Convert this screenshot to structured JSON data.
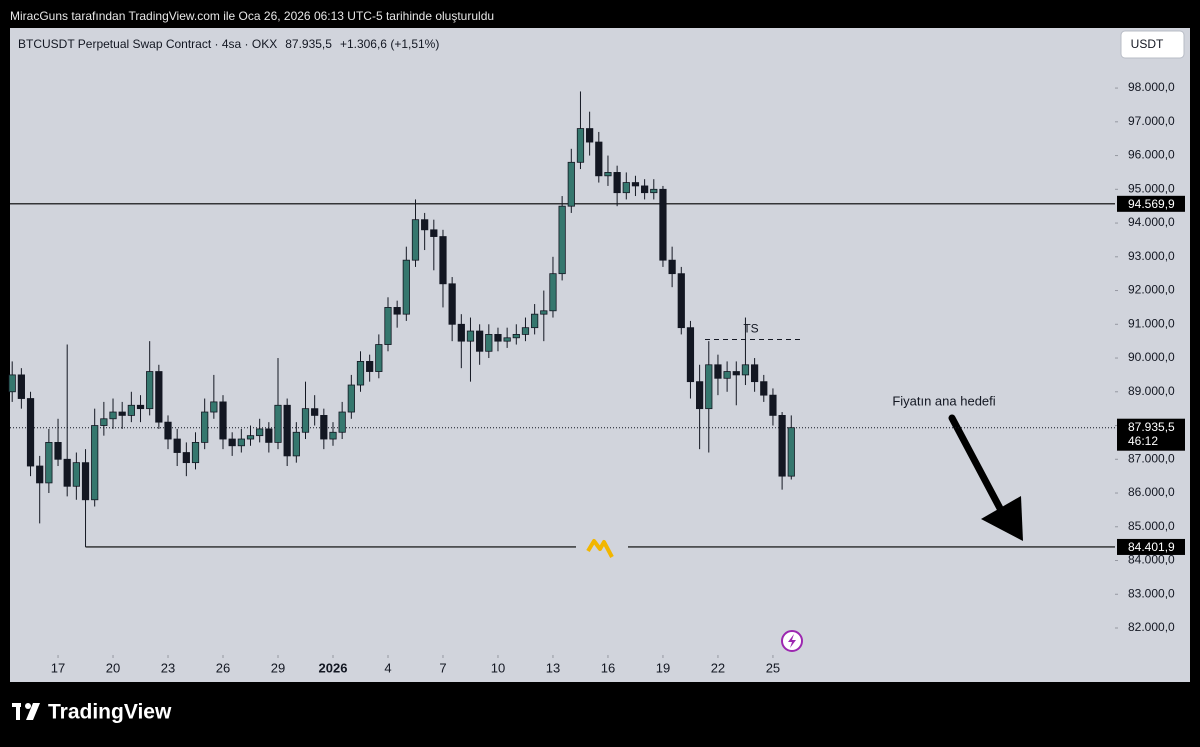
{
  "chart_data": {
    "type": "candlestick",
    "caption": "MiracGuns tarafından TradingView.com ile Oca 26, 2026 06:13 UTC-5 tarihinde oluşturuldu",
    "title": "BTCUSDT Perpetual Swap Contract · 4sa · OKX",
    "last_price": "87.935,5",
    "change": "+1.306,6 (+1,51%)",
    "currency": "USDT",
    "brand": "TradingView",
    "up_color": "#35776e",
    "down_color": "#131722",
    "ylim": [
      81200,
      99780
    ],
    "yticks": [
      {
        "value": 82000,
        "label": "82.000,0"
      },
      {
        "value": 83000,
        "label": "83.000,0"
      },
      {
        "value": 84000,
        "label": "84.000,0"
      },
      {
        "value": 85000,
        "label": "85.000,0"
      },
      {
        "value": 86000,
        "label": "86.000,0"
      },
      {
        "value": 87000,
        "label": "87.000,0"
      },
      {
        "value": 88000,
        "label": "88.000,0"
      },
      {
        "value": 89000,
        "label": "89.000,0"
      },
      {
        "value": 90000,
        "label": "90.000,0"
      },
      {
        "value": 91000,
        "label": "91.000,0"
      },
      {
        "value": 92000,
        "label": "92.000,0"
      },
      {
        "value": 93000,
        "label": "93.000,0"
      },
      {
        "value": 94000,
        "label": "94.000,0"
      },
      {
        "value": 95000,
        "label": "95.000,0"
      },
      {
        "value": 96000,
        "label": "96.000,0"
      },
      {
        "value": 97000,
        "label": "97.000,0"
      },
      {
        "value": 98000,
        "label": "98.000,0"
      }
    ],
    "xlim": [
      -2.62,
      57.66
    ],
    "xticks": [
      {
        "value": 0,
        "label": "17"
      },
      {
        "value": 3,
        "label": "20"
      },
      {
        "value": 6,
        "label": "23"
      },
      {
        "value": 9,
        "label": "26"
      },
      {
        "value": 12,
        "label": "29"
      },
      {
        "value": 15,
        "label": "2026"
      },
      {
        "value": 18,
        "label": "4"
      },
      {
        "value": 21,
        "label": "7"
      },
      {
        "value": 24,
        "label": "10"
      },
      {
        "value": 27,
        "label": "13"
      },
      {
        "value": 30,
        "label": "16"
      },
      {
        "value": 33,
        "label": "19"
      },
      {
        "value": 36,
        "label": "22"
      },
      {
        "value": 39,
        "label": "25"
      }
    ],
    "x": [
      -2.5,
      -2,
      -1.5,
      -1,
      -0.5,
      0,
      0.5,
      1,
      1.5,
      2,
      2.5,
      3,
      3.5,
      4,
      4.5,
      5,
      5.5,
      6,
      6.5,
      7,
      7.5,
      8,
      8.5,
      9,
      9.5,
      10,
      10.5,
      11,
      11.5,
      12,
      12.5,
      13,
      13.5,
      14,
      14.5,
      15,
      15.5,
      16,
      16.5,
      17,
      17.5,
      18,
      18.5,
      19,
      19.5,
      20,
      20.5,
      21,
      21.5,
      22,
      22.5,
      23,
      23.5,
      24,
      24.5,
      25,
      25.5,
      26,
      26.5,
      27,
      27.5,
      28,
      28.5,
      29,
      29.5,
      30,
      30.5,
      31,
      31.5,
      32,
      32.5,
      33,
      33.5,
      34,
      34.5,
      35,
      35.5,
      36,
      36.5,
      37,
      37.5,
      38,
      38.5,
      39,
      39.5,
      40
    ],
    "candles": [
      [
        89000,
        89900,
        88700,
        89500
      ],
      [
        89500,
        89700,
        88500,
        88800
      ],
      [
        88800,
        89000,
        86500,
        86800
      ],
      [
        86800,
        87100,
        85100,
        86300
      ],
      [
        86300,
        87900,
        86000,
        87500
      ],
      [
        87500,
        88200,
        86800,
        87000
      ],
      [
        87000,
        90400,
        85900,
        86200
      ],
      [
        86200,
        87200,
        85800,
        86900
      ],
      [
        86900,
        87300,
        84401.9,
        85800
      ],
      [
        85800,
        88500,
        85600,
        88000
      ],
      [
        88000,
        88700,
        87700,
        88200
      ],
      [
        88200,
        88800,
        87900,
        88400
      ],
      [
        88400,
        88700,
        87900,
        88300
      ],
      [
        88300,
        89000,
        88100,
        88600
      ],
      [
        88600,
        88900,
        88100,
        88500
      ],
      [
        88500,
        90500,
        88300,
        89600
      ],
      [
        89600,
        89800,
        87900,
        88100
      ],
      [
        88100,
        88300,
        87300,
        87600
      ],
      [
        87600,
        87900,
        86800,
        87200
      ],
      [
        87200,
        87500,
        86500,
        86900
      ],
      [
        86900,
        87800,
        86700,
        87500
      ],
      [
        87500,
        88800,
        87300,
        88400
      ],
      [
        88400,
        89500,
        88200,
        88700
      ],
      [
        88700,
        88900,
        87300,
        87600
      ],
      [
        87600,
        87800,
        87100,
        87400
      ],
      [
        87400,
        87900,
        87200,
        87600
      ],
      [
        87600,
        88000,
        87400,
        87700
      ],
      [
        87700,
        88200,
        87500,
        87900
      ],
      [
        87900,
        88100,
        87200,
        87500
      ],
      [
        87500,
        90000,
        87300,
        88600
      ],
      [
        88600,
        88800,
        86800,
        87100
      ],
      [
        87100,
        88100,
        86900,
        87800
      ],
      [
        87800,
        89300,
        87600,
        88500
      ],
      [
        88500,
        88900,
        88000,
        88300
      ],
      [
        88300,
        88500,
        87300,
        87600
      ],
      [
        87600,
        88100,
        87400,
        87800
      ],
      [
        87800,
        88700,
        87600,
        88400
      ],
      [
        88400,
        89500,
        88200,
        89200
      ],
      [
        89200,
        90200,
        89000,
        89900
      ],
      [
        89900,
        90100,
        89300,
        89600
      ],
      [
        89600,
        90700,
        89400,
        90400
      ],
      [
        90400,
        91800,
        90200,
        91500
      ],
      [
        91500,
        91700,
        90900,
        91300
      ],
      [
        91300,
        93300,
        91100,
        92900
      ],
      [
        92900,
        94700,
        92700,
        94100
      ],
      [
        94100,
        94300,
        93200,
        93800
      ],
      [
        93800,
        94100,
        92600,
        93600
      ],
      [
        93600,
        93800,
        91500,
        92200
      ],
      [
        92200,
        92400,
        90500,
        91000
      ],
      [
        91000,
        91300,
        89700,
        90500
      ],
      [
        90500,
        91200,
        89300,
        90800
      ],
      [
        90800,
        91000,
        89800,
        90200
      ],
      [
        90200,
        91000,
        90000,
        90700
      ],
      [
        90700,
        90900,
        90200,
        90500
      ],
      [
        90500,
        90900,
        90300,
        90600
      ],
      [
        90600,
        91000,
        90400,
        90700
      ],
      [
        90700,
        91200,
        90500,
        90900
      ],
      [
        90900,
        91600,
        90700,
        91300
      ],
      [
        91300,
        92000,
        90500,
        91400
      ],
      [
        91400,
        93000,
        91200,
        92500
      ],
      [
        92500,
        94800,
        92300,
        94500
      ],
      [
        94500,
        96200,
        94300,
        95800
      ],
      [
        95800,
        97900,
        95600,
        96800
      ],
      [
        96800,
        97300,
        96000,
        96400
      ],
      [
        96400,
        96700,
        95200,
        95400
      ],
      [
        95400,
        96000,
        95100,
        95500
      ],
      [
        95500,
        95700,
        94500,
        94900
      ],
      [
        94900,
        95500,
        94700,
        95200
      ],
      [
        95200,
        95400,
        94800,
        95100
      ],
      [
        95100,
        95300,
        94700,
        94900
      ],
      [
        94900,
        95300,
        94700,
        95000
      ],
      [
        95000,
        95100,
        92700,
        92900
      ],
      [
        92900,
        93300,
        92100,
        92500
      ],
      [
        92500,
        92700,
        90700,
        90900
      ],
      [
        90900,
        91100,
        88800,
        89300
      ],
      [
        89300,
        89800,
        87300,
        88500
      ],
      [
        88500,
        90500,
        87200,
        89800
      ],
      [
        89800,
        90100,
        88900,
        89400
      ],
      [
        89400,
        89900,
        89000,
        89600
      ],
      [
        89600,
        89900,
        88600,
        89500
      ],
      [
        89500,
        91200,
        89200,
        89800
      ],
      [
        89800,
        90000,
        89000,
        89300
      ],
      [
        89300,
        89500,
        88700,
        88900
      ],
      [
        88900,
        89100,
        88000,
        88300
      ],
      [
        88300,
        88400,
        86100,
        86500
      ],
      [
        86500,
        88300,
        86400,
        87935.5
      ]
    ],
    "levels": [
      {
        "value": 94569.9,
        "label": "94.569,9"
      },
      {
        "value": 84401.9,
        "label": "84.401,9"
      }
    ],
    "price_line": {
      "value": 87935.5,
      "label": "87.935,5",
      "countdown": "46:12"
    },
    "ts_line": {
      "value": 90550,
      "label": "TS"
    },
    "annotation": "Fiyatın ana hedefi"
  }
}
